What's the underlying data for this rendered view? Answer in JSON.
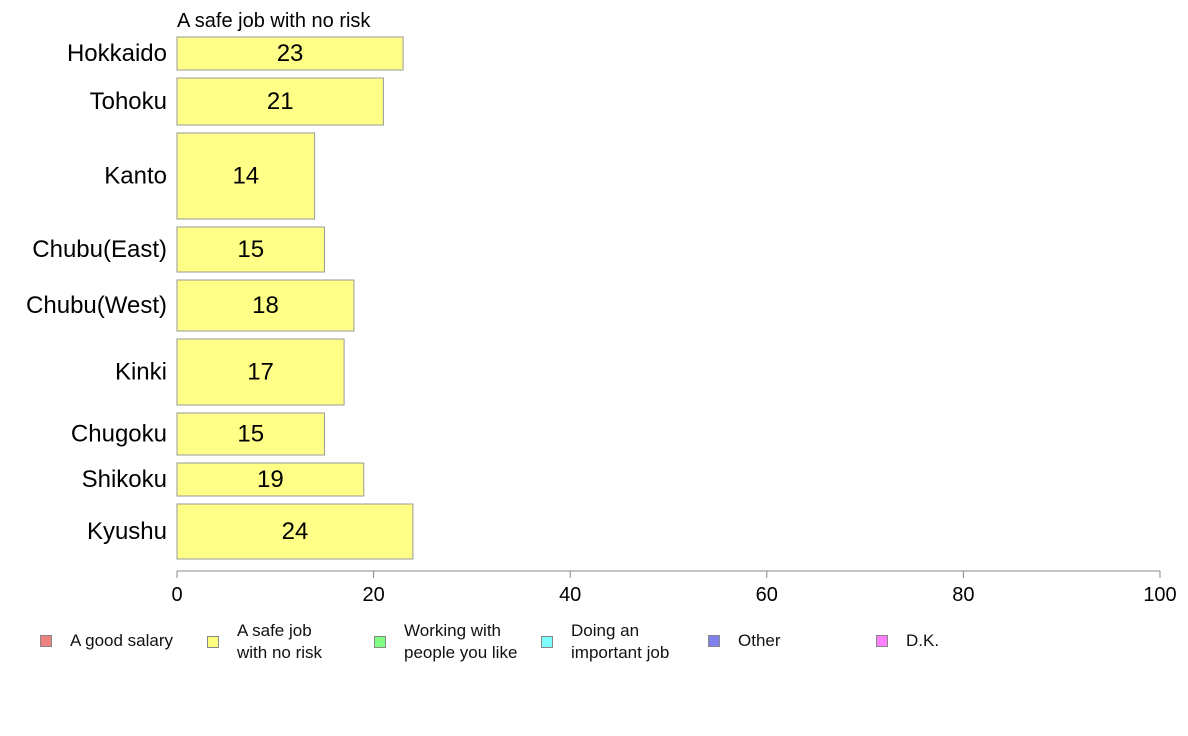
{
  "chart_data": {
    "type": "bar",
    "orientation": "horizontal",
    "title": "A safe job with no risk",
    "categories": [
      "Hokkaido",
      "Tohoku",
      "Kanto",
      "Chubu(East)",
      "Chubu(West)",
      "Kinki",
      "Chugoku",
      "Shikoku",
      "Kyushu"
    ],
    "series": [
      {
        "name": "A safe job with no risk",
        "values": [
          23,
          21,
          14,
          15,
          18,
          17,
          15,
          19,
          24
        ],
        "color": "#ffff88"
      }
    ],
    "xlim": [
      0,
      100
    ],
    "xticks": [
      0,
      20,
      40,
      60,
      80,
      100
    ],
    "grid": false,
    "legend_position": "bottom"
  },
  "legend": [
    {
      "label": "A good salary",
      "color": "#f08080"
    },
    {
      "label": "A safe job\nwith no risk",
      "color": "#ffff80"
    },
    {
      "label": "Working with\npeople you like",
      "color": "#80ff80"
    },
    {
      "label": "Doing an\nimportant job",
      "color": "#80ffff"
    },
    {
      "label": "Other",
      "color": "#8080f0"
    },
    {
      "label": "D.K.",
      "color": "#ff80ff"
    }
  ]
}
